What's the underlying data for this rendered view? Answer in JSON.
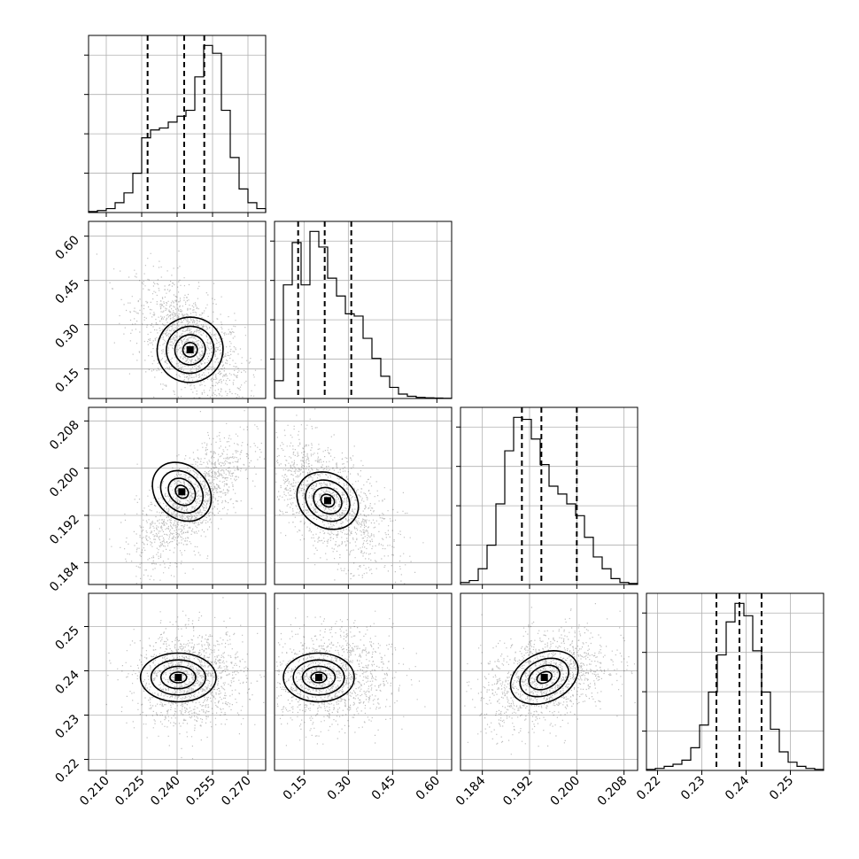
{
  "chart_data": {
    "type": "corner",
    "parameters": [
      {
        "ticks": [
          "0.210",
          "0.225",
          "0.240",
          "0.255",
          "0.270"
        ],
        "range": [
          0.2025,
          0.2775
        ],
        "mean": 0.2455,
        "sd": 0.0095,
        "quantiles": [
          0.2275,
          0.243,
          0.2515
        ],
        "hist": [
          0.5,
          1,
          2,
          5,
          10,
          20,
          38,
          42,
          43,
          46,
          49,
          52,
          69,
          85,
          81,
          52,
          28,
          12,
          5,
          2
        ]
      },
      {
        "ticks": [
          "0.15",
          "0.30",
          "0.45",
          "0.60"
        ],
        "range": [
          0.05,
          0.65
        ],
        "mean": 0.23,
        "sd": 0.09,
        "quantiles": [
          0.13,
          0.22,
          0.31
        ],
        "hist": [
          8,
          51,
          70,
          51,
          75,
          68,
          54,
          46,
          38,
          37,
          27,
          18,
          10,
          5,
          2,
          1,
          0.5,
          0.3,
          0.2,
          0.1
        ]
      },
      {
        "ticks": [
          "0.184",
          "0.192",
          "0.200",
          "0.208"
        ],
        "range": [
          0.1803,
          0.2103
        ],
        "mean": 0.1945,
        "sd": 0.0045,
        "quantiles": [
          0.1907,
          0.194,
          0.2
        ],
        "hist": [
          1,
          2,
          8,
          20,
          41,
          68,
          85,
          84,
          74,
          61,
          50,
          46,
          41,
          35,
          24,
          14,
          8,
          3,
          1,
          0.5
        ]
      },
      {
        "ticks": [
          "0.22",
          "0.23",
          "0.24",
          "0.25"
        ],
        "range": [
          0.2175,
          0.2575
        ],
        "mean": 0.2385,
        "sd": 0.0045,
        "quantiles": [
          0.2333,
          0.2385,
          0.2435
        ],
        "hist": [
          0.5,
          1,
          2,
          3,
          5,
          11,
          22,
          38,
          56,
          72,
          81,
          75,
          58,
          38,
          20,
          9,
          4,
          2,
          1,
          0.5
        ]
      }
    ]
  }
}
